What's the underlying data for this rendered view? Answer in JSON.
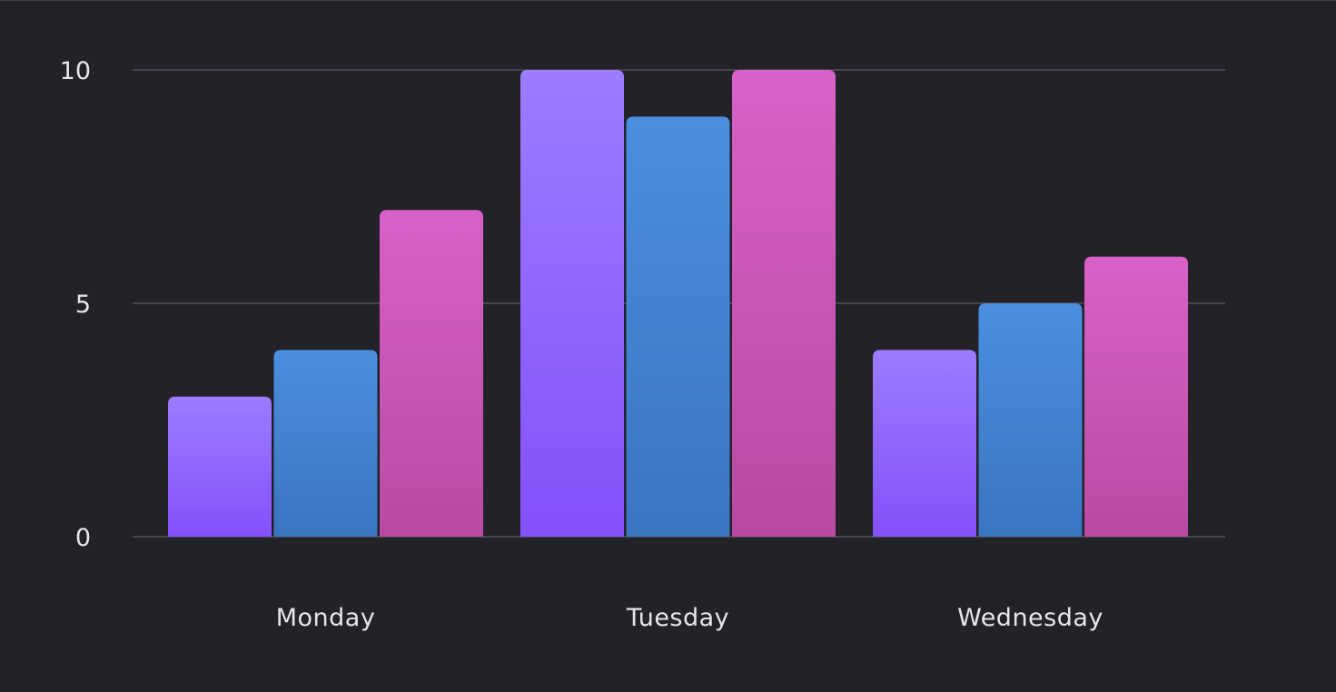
{
  "chart_data": {
    "type": "bar",
    "categories": [
      "Monday",
      "Tuesday",
      "Wednesday"
    ],
    "series": [
      {
        "values": [
          3,
          10,
          4
        ],
        "color_top": "#9c7cff",
        "color_bottom": "#8450fc"
      },
      {
        "values": [
          4,
          9,
          5
        ],
        "color_top": "#4a8fe0",
        "color_bottom": "#3a75c0"
      },
      {
        "values": [
          7,
          10,
          6
        ],
        "color_top": "#d862c8",
        "color_bottom": "#b84aa2"
      }
    ],
    "y_ticks": [
      "0",
      "5",
      "10"
    ],
    "ylim": [
      0,
      10
    ],
    "grid": true,
    "legend": "none",
    "colors": {
      "background": "#222228",
      "gridline": "#45454d",
      "text": "#e6e6ea"
    }
  }
}
